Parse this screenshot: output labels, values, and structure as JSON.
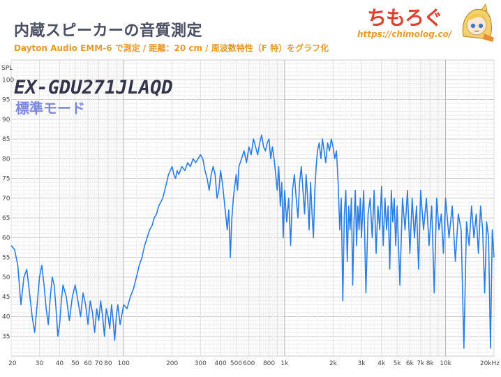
{
  "header": {
    "title": "内蔵スピーカーの音質測定",
    "subtitle": "Dayton Audio EMM-6 で測定 / 距離：20 cm / 周波数特性（F 特）をグラフ化",
    "brand": "ちもろぐ",
    "url": "https://chimolog.co/"
  },
  "colors": {
    "line": "#2a7de1",
    "title": "#4a4e63",
    "accent": "#e69a2e",
    "brand": "#e0412f",
    "mode": "#7b86e0"
  },
  "chart_data": {
    "type": "line",
    "title": "EX-GDU271JLAQD",
    "subtitle": "標準モード",
    "xlabel": "",
    "ylabel": "SPL",
    "xscale": "log",
    "xlim": [
      20,
      20000
    ],
    "ylim": [
      30,
      105
    ],
    "grid": true,
    "x_ticks": [
      {
        "v": 20,
        "l": "20"
      },
      {
        "v": 30,
        "l": "30"
      },
      {
        "v": 40,
        "l": "40"
      },
      {
        "v": 50,
        "l": "50"
      },
      {
        "v": 60,
        "l": "60"
      },
      {
        "v": 70,
        "l": "70"
      },
      {
        "v": 80,
        "l": "80"
      },
      {
        "v": 100,
        "l": "100"
      },
      {
        "v": 200,
        "l": "200"
      },
      {
        "v": 300,
        "l": "300"
      },
      {
        "v": 400,
        "l": "400"
      },
      {
        "v": 500,
        "l": "500"
      },
      {
        "v": 600,
        "l": "600"
      },
      {
        "v": 800,
        "l": "800"
      },
      {
        "v": 1000,
        "l": "1k"
      },
      {
        "v": 2000,
        "l": "2k"
      },
      {
        "v": 3000,
        "l": "3k"
      },
      {
        "v": 4000,
        "l": "4k"
      },
      {
        "v": 5000,
        "l": "5k"
      },
      {
        "v": 6000,
        "l": "6k"
      },
      {
        "v": 7000,
        "l": "7k"
      },
      {
        "v": 8000,
        "l": "8k"
      },
      {
        "v": 10000,
        "l": "10k"
      },
      {
        "v": 20000,
        "l": "20kHz"
      }
    ],
    "y_ticks": [
      35,
      40,
      45,
      50,
      55,
      60,
      65,
      70,
      75,
      80,
      85,
      90,
      95,
      100
    ],
    "series": [
      {
        "points": [
          [
            20,
            58
          ],
          [
            21,
            57
          ],
          [
            22,
            53
          ],
          [
            23,
            43
          ],
          [
            24,
            50
          ],
          [
            25,
            52
          ],
          [
            26,
            46
          ],
          [
            27,
            40
          ],
          [
            28,
            36
          ],
          [
            29,
            43
          ],
          [
            30,
            50
          ],
          [
            31,
            53
          ],
          [
            32,
            48
          ],
          [
            33,
            42
          ],
          [
            34,
            38
          ],
          [
            35,
            45
          ],
          [
            36,
            50
          ],
          [
            37,
            48
          ],
          [
            38,
            42
          ],
          [
            39,
            35
          ],
          [
            40,
            38
          ],
          [
            41,
            44
          ],
          [
            42,
            48
          ],
          [
            44,
            45
          ],
          [
            46,
            39
          ],
          [
            48,
            45
          ],
          [
            50,
            48
          ],
          [
            52,
            44
          ],
          [
            54,
            40
          ],
          [
            56,
            46
          ],
          [
            58,
            43
          ],
          [
            60,
            38
          ],
          [
            62,
            44
          ],
          [
            64,
            41
          ],
          [
            66,
            36
          ],
          [
            68,
            42
          ],
          [
            70,
            39
          ],
          [
            72,
            44
          ],
          [
            74,
            40
          ],
          [
            76,
            35
          ],
          [
            78,
            42
          ],
          [
            80,
            40
          ],
          [
            82,
            37
          ],
          [
            84,
            43
          ],
          [
            86,
            39
          ],
          [
            88,
            34
          ],
          [
            90,
            40
          ],
          [
            92,
            43
          ],
          [
            95,
            38
          ],
          [
            98,
            41
          ],
          [
            100,
            43
          ],
          [
            105,
            42
          ],
          [
            110,
            45
          ],
          [
            115,
            47
          ],
          [
            120,
            50
          ],
          [
            125,
            53
          ],
          [
            130,
            55
          ],
          [
            135,
            58
          ],
          [
            140,
            60
          ],
          [
            145,
            62
          ],
          [
            150,
            63
          ],
          [
            155,
            65
          ],
          [
            160,
            66
          ],
          [
            165,
            68
          ],
          [
            170,
            69
          ],
          [
            175,
            70
          ],
          [
            180,
            72
          ],
          [
            185,
            74
          ],
          [
            190,
            76
          ],
          [
            195,
            77
          ],
          [
            200,
            78
          ],
          [
            205,
            76
          ],
          [
            210,
            75
          ],
          [
            215,
            77
          ],
          [
            220,
            76
          ],
          [
            230,
            78
          ],
          [
            240,
            77
          ],
          [
            250,
            79
          ],
          [
            260,
            78
          ],
          [
            270,
            80
          ],
          [
            280,
            79
          ],
          [
            290,
            80
          ],
          [
            300,
            81
          ],
          [
            310,
            80
          ],
          [
            320,
            77
          ],
          [
            330,
            75
          ],
          [
            340,
            72
          ],
          [
            350,
            76
          ],
          [
            360,
            78
          ],
          [
            370,
            76
          ],
          [
            380,
            70
          ],
          [
            390,
            72
          ],
          [
            400,
            77
          ],
          [
            410,
            74
          ],
          [
            420,
            70
          ],
          [
            430,
            66
          ],
          [
            440,
            62
          ],
          [
            450,
            67
          ],
          [
            460,
            55
          ],
          [
            470,
            65
          ],
          [
            480,
            70
          ],
          [
            490,
            73
          ],
          [
            500,
            76
          ],
          [
            510,
            72
          ],
          [
            520,
            78
          ],
          [
            540,
            80
          ],
          [
            560,
            82
          ],
          [
            580,
            79
          ],
          [
            600,
            83
          ],
          [
            620,
            81
          ],
          [
            640,
            85
          ],
          [
            660,
            83
          ],
          [
            680,
            81
          ],
          [
            700,
            84
          ],
          [
            720,
            86
          ],
          [
            740,
            83
          ],
          [
            760,
            82
          ],
          [
            780,
            84
          ],
          [
            800,
            85
          ],
          [
            820,
            80
          ],
          [
            840,
            83
          ],
          [
            860,
            80
          ],
          [
            880,
            76
          ],
          [
            900,
            72
          ],
          [
            920,
            78
          ],
          [
            940,
            68
          ],
          [
            960,
            74
          ],
          [
            980,
            60
          ],
          [
            1000,
            72
          ],
          [
            1030,
            64
          ],
          [
            1060,
            70
          ],
          [
            1090,
            58
          ],
          [
            1120,
            72
          ],
          [
            1150,
            76
          ],
          [
            1180,
            70
          ],
          [
            1210,
            65
          ],
          [
            1240,
            74
          ],
          [
            1270,
            78
          ],
          [
            1300,
            72
          ],
          [
            1330,
            66
          ],
          [
            1360,
            76
          ],
          [
            1390,
            70
          ],
          [
            1420,
            62
          ],
          [
            1450,
            74
          ],
          [
            1480,
            66
          ],
          [
            1510,
            60
          ],
          [
            1540,
            72
          ],
          [
            1570,
            78
          ],
          [
            1600,
            82
          ],
          [
            1640,
            84
          ],
          [
            1680,
            80
          ],
          [
            1720,
            85
          ],
          [
            1760,
            82
          ],
          [
            1800,
            79
          ],
          [
            1850,
            84
          ],
          [
            1900,
            82
          ],
          [
            1950,
            85
          ],
          [
            2000,
            83
          ],
          [
            2050,
            80
          ],
          [
            2100,
            82
          ],
          [
            2150,
            74
          ],
          [
            2200,
            62
          ],
          [
            2250,
            70
          ],
          [
            2300,
            44
          ],
          [
            2350,
            66
          ],
          [
            2400,
            72
          ],
          [
            2450,
            54
          ],
          [
            2500,
            68
          ],
          [
            2550,
            62
          ],
          [
            2600,
            70
          ],
          [
            2650,
            48
          ],
          [
            2700,
            64
          ],
          [
            2750,
            72
          ],
          [
            2800,
            58
          ],
          [
            2850,
            68
          ],
          [
            2900,
            62
          ],
          [
            2950,
            70
          ],
          [
            3000,
            60
          ],
          [
            3100,
            72
          ],
          [
            3200,
            46
          ],
          [
            3300,
            66
          ],
          [
            3400,
            70
          ],
          [
            3500,
            60
          ],
          [
            3600,
            72
          ],
          [
            3700,
            56
          ],
          [
            3800,
            68
          ],
          [
            3900,
            62
          ],
          [
            4000,
            73
          ],
          [
            4100,
            58
          ],
          [
            4200,
            70
          ],
          [
            4300,
            62
          ],
          [
            4400,
            68
          ],
          [
            4500,
            52
          ],
          [
            4600,
            72
          ],
          [
            4700,
            64
          ],
          [
            4800,
            70
          ],
          [
            4900,
            58
          ],
          [
            5000,
            68
          ],
          [
            5200,
            48
          ],
          [
            5400,
            70
          ],
          [
            5600,
            62
          ],
          [
            5800,
            72
          ],
          [
            6000,
            56
          ],
          [
            6200,
            70
          ],
          [
            6400,
            60
          ],
          [
            6600,
            68
          ],
          [
            6800,
            52
          ],
          [
            7000,
            72
          ],
          [
            7300,
            62
          ],
          [
            7600,
            70
          ],
          [
            7900,
            58
          ],
          [
            8200,
            68
          ],
          [
            8500,
            46
          ],
          [
            8800,
            70
          ],
          [
            9100,
            62
          ],
          [
            9400,
            66
          ],
          [
            9700,
            56
          ],
          [
            10000,
            70
          ],
          [
            10500,
            60
          ],
          [
            11000,
            68
          ],
          [
            11500,
            54
          ],
          [
            12000,
            66
          ],
          [
            12500,
            62
          ],
          [
            13000,
            32
          ],
          [
            13500,
            64
          ],
          [
            14000,
            58
          ],
          [
            14500,
            68
          ],
          [
            15000,
            60
          ],
          [
            15500,
            66
          ],
          [
            16000,
            56
          ],
          [
            16500,
            68
          ],
          [
            17000,
            62
          ],
          [
            17500,
            46
          ],
          [
            18000,
            64
          ],
          [
            18500,
            60
          ],
          [
            19000,
            32
          ],
          [
            19500,
            62
          ],
          [
            20000,
            55
          ]
        ]
      }
    ]
  }
}
